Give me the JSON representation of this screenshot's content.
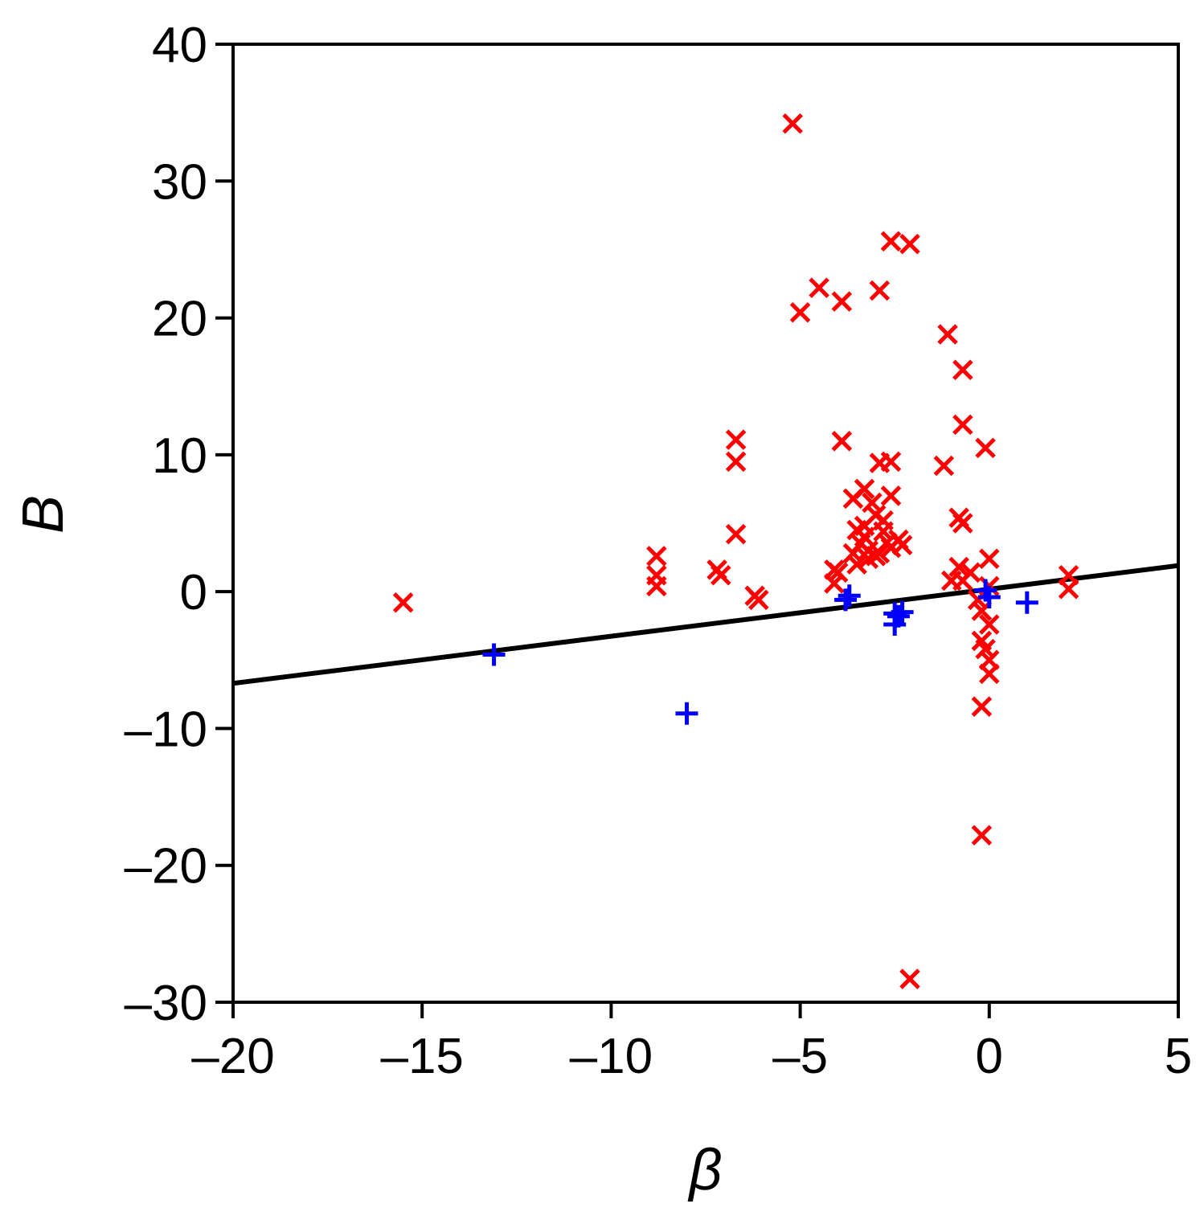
{
  "chart_data": {
    "type": "scatter",
    "title": "",
    "xlabel": "β",
    "ylabel": "B",
    "xlim": [
      -20,
      5
    ],
    "ylim": [
      -30,
      40
    ],
    "x_ticks": [
      -20,
      -15,
      -10,
      -5,
      0,
      5
    ],
    "y_ticks": [
      -30,
      -20,
      -10,
      0,
      10,
      20,
      30,
      40
    ],
    "x_tick_labels": [
      "–20",
      "–15",
      "–10",
      "–5",
      "0",
      "5"
    ],
    "y_tick_labels": [
      "–30",
      "–20",
      "–10",
      "0",
      "10",
      "20",
      "30",
      "40"
    ],
    "grid": false,
    "legend": "none",
    "line": {
      "x": [
        -20,
        5
      ],
      "y": [
        -6.7,
        1.9
      ],
      "color": "#000000"
    },
    "series": [
      {
        "marker": "x",
        "color": "#ff0000",
        "points": [
          [
            -15.5,
            -0.8
          ],
          [
            -5.2,
            34.2
          ],
          [
            -5.0,
            20.4
          ],
          [
            -4.5,
            22.2
          ],
          [
            -3.9,
            21.2
          ],
          [
            -2.9,
            22.0
          ],
          [
            -2.6,
            25.6
          ],
          [
            -2.1,
            25.4
          ],
          [
            -1.1,
            18.8
          ],
          [
            -0.7,
            16.2
          ],
          [
            -0.7,
            12.2
          ],
          [
            -0.1,
            10.5
          ],
          [
            -1.2,
            9.2
          ],
          [
            -6.7,
            11.1
          ],
          [
            -6.7,
            9.5
          ],
          [
            -6.7,
            4.2
          ],
          [
            -3.9,
            11.0
          ],
          [
            -2.6,
            9.5
          ],
          [
            -2.9,
            9.4
          ],
          [
            -8.8,
            2.6
          ],
          [
            -8.8,
            1.2
          ],
          [
            -8.8,
            0.4
          ],
          [
            -7.2,
            1.6
          ],
          [
            -7.1,
            1.2
          ],
          [
            -6.2,
            -0.3
          ],
          [
            -6.1,
            -0.6
          ],
          [
            -4.1,
            1.6
          ],
          [
            -4.1,
            0.6
          ],
          [
            -4.0,
            1.4
          ],
          [
            -3.6,
            6.8
          ],
          [
            -3.3,
            7.5
          ],
          [
            -3.5,
            4.5
          ],
          [
            -3.3,
            4.0
          ],
          [
            -3.1,
            6.5
          ],
          [
            -3.0,
            5.6
          ],
          [
            -2.8,
            5.2
          ],
          [
            -2.6,
            7.0
          ],
          [
            -3.4,
            3.5
          ],
          [
            -3.2,
            3.0
          ],
          [
            -3.0,
            2.6
          ],
          [
            -2.8,
            4.4
          ],
          [
            -2.6,
            3.2
          ],
          [
            -2.4,
            3.8
          ],
          [
            -2.3,
            3.4
          ],
          [
            -3.5,
            2.0
          ],
          [
            -3.2,
            2.4
          ],
          [
            -2.9,
            2.8
          ],
          [
            -3.6,
            2.8
          ],
          [
            -3.3,
            4.8
          ],
          [
            -2.7,
            3.6
          ],
          [
            -0.8,
            5.4
          ],
          [
            -0.7,
            5.0
          ],
          [
            -0.8,
            1.8
          ],
          [
            -0.7,
            0.8
          ],
          [
            -0.5,
            1.4
          ],
          [
            -1.0,
            0.8
          ],
          [
            0.0,
            2.4
          ],
          [
            0.0,
            0.4
          ],
          [
            -0.3,
            -0.6
          ],
          [
            -0.2,
            -1.4
          ],
          [
            0.0,
            -2.4
          ],
          [
            -0.2,
            -3.6
          ],
          [
            -0.1,
            -4.2
          ],
          [
            0.0,
            -5.0
          ],
          [
            0.0,
            -6.0
          ],
          [
            -0.2,
            -8.4
          ],
          [
            -0.2,
            -17.8
          ],
          [
            2.1,
            1.2
          ],
          [
            2.1,
            0.2
          ],
          [
            -2.1,
            -28.3
          ]
        ]
      },
      {
        "marker": "+",
        "color": "#0000ff",
        "points": [
          [
            -13.1,
            -4.6
          ],
          [
            -8.0,
            -8.9
          ],
          [
            -3.8,
            -0.6
          ],
          [
            -3.7,
            -0.3
          ],
          [
            -2.5,
            -1.6
          ],
          [
            -2.5,
            -2.4
          ],
          [
            -2.4,
            -1.8
          ],
          [
            -2.3,
            -1.5
          ],
          [
            -0.1,
            0.1
          ],
          [
            0.0,
            -0.4
          ],
          [
            1.0,
            -0.8
          ]
        ]
      }
    ]
  }
}
